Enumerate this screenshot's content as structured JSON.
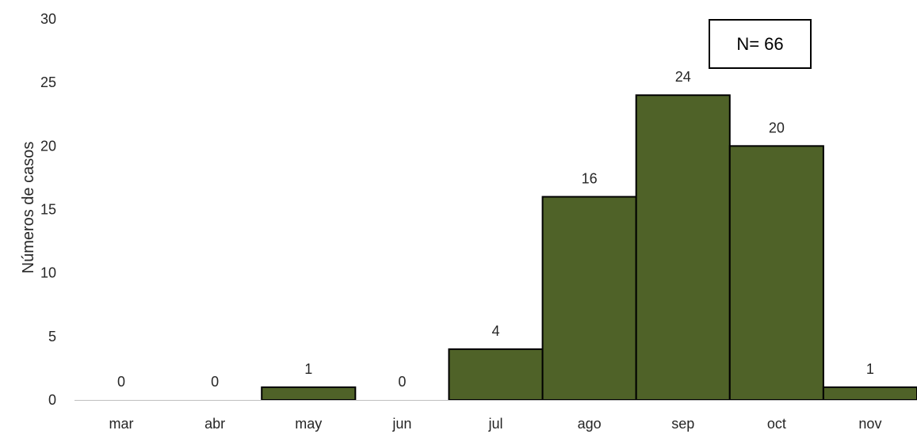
{
  "chart_data": {
    "type": "bar",
    "categories": [
      "mar",
      "abr",
      "may",
      "jun",
      "jul",
      "ago",
      "sep",
      "oct",
      "nov"
    ],
    "values": [
      0,
      0,
      1,
      0,
      4,
      16,
      24,
      20,
      1
    ],
    "data_labels": [
      "0",
      "0",
      "1",
      "0",
      "4",
      "16",
      "24",
      "20",
      "1"
    ],
    "title": "",
    "xlabel": "",
    "ylabel": "Números de casos",
    "ylim": [
      0,
      30
    ],
    "yticks": [
      0,
      5,
      10,
      15,
      20,
      25,
      30
    ],
    "ytick_labels": [
      "0",
      "5",
      "10",
      "15",
      "20",
      "25",
      "30"
    ],
    "annotation": "N= 66",
    "grid": false,
    "legend": "none",
    "colors": {
      "bar_fill": "#4f6228",
      "bar_stroke": "#000000",
      "axis": "#bfbfbf",
      "text": "#262626"
    }
  }
}
